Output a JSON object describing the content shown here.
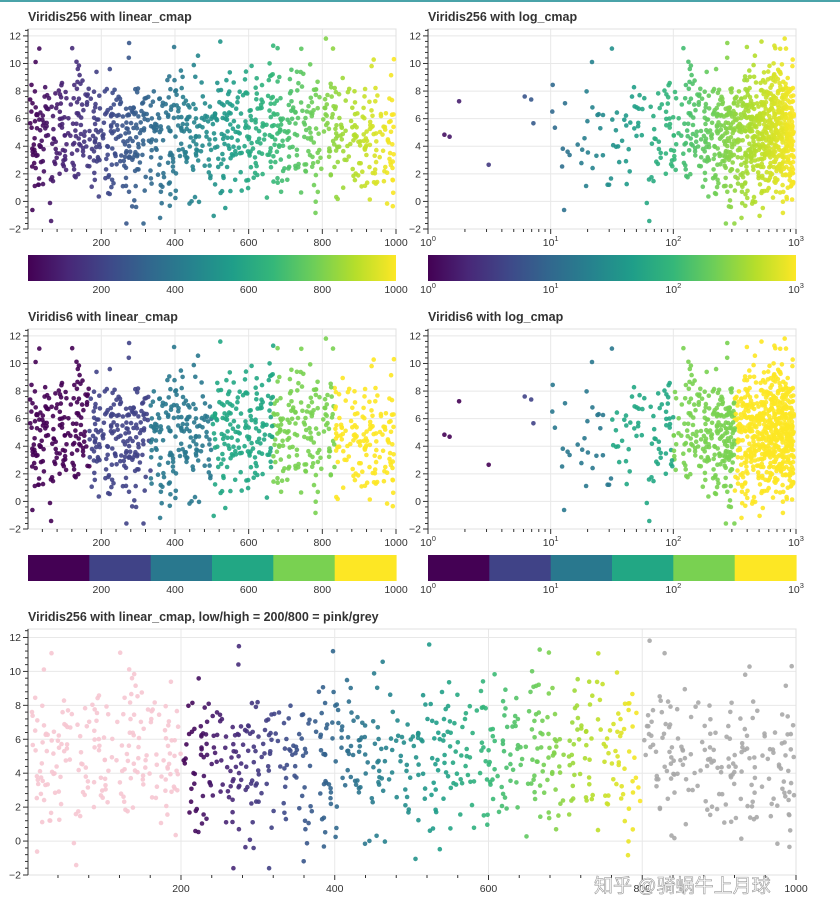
{
  "chart_data": [
    {
      "id": "p1",
      "type": "scatter",
      "title": "Viridis256 with linear_cmap",
      "palette": "Viridis256",
      "mapper": "linear_cmap",
      "xlim": [
        1,
        1000
      ],
      "ylim": [
        -2,
        12.5
      ],
      "x_scale": "linear",
      "xticks": [
        "200",
        "400",
        "600",
        "800",
        "1000"
      ],
      "yticks": [
        "12",
        "10",
        "8",
        "6",
        "4",
        "2",
        "0",
        "−2"
      ],
      "colorbar": {
        "type": "continuous",
        "ticks": [
          "200",
          "400",
          "600",
          "800",
          "1000"
        ]
      }
    },
    {
      "id": "p2",
      "type": "scatter",
      "title": "Viridis256 with log_cmap",
      "palette": "Viridis256",
      "mapper": "log_cmap",
      "xlim": [
        1,
        1000
      ],
      "ylim": [
        -2,
        12.5
      ],
      "x_scale": "log",
      "xticks": [
        "10",
        "10",
        "10",
        "10"
      ],
      "xtick_exponents": [
        "0",
        "1",
        "2",
        "3"
      ],
      "yticks": [
        "12",
        "10",
        "8",
        "6",
        "4",
        "2",
        "0",
        "−2"
      ],
      "colorbar": {
        "type": "continuous",
        "ticks": [
          "10",
          "10",
          "10",
          "10"
        ],
        "tick_exponents": [
          "0",
          "1",
          "2",
          "3"
        ]
      }
    },
    {
      "id": "p3",
      "type": "scatter",
      "title": "Viridis6 with linear_cmap",
      "palette": "Viridis6",
      "mapper": "linear_cmap",
      "xlim": [
        1,
        1000
      ],
      "ylim": [
        -2,
        12.5
      ],
      "x_scale": "linear",
      "xticks": [
        "200",
        "400",
        "600",
        "800",
        "1000"
      ],
      "yticks": [
        "12",
        "10",
        "8",
        "6",
        "4",
        "2",
        "0",
        "−2"
      ],
      "colorbar": {
        "type": "discrete",
        "ticks": [
          "200",
          "400",
          "600",
          "800",
          "1000"
        ]
      }
    },
    {
      "id": "p4",
      "type": "scatter",
      "title": "Viridis6 with log_cmap",
      "palette": "Viridis6",
      "mapper": "log_cmap",
      "xlim": [
        1,
        1000
      ],
      "ylim": [
        -2,
        12.5
      ],
      "x_scale": "log",
      "xticks": [
        "10",
        "10",
        "10",
        "10"
      ],
      "xtick_exponents": [
        "0",
        "1",
        "2",
        "3"
      ],
      "yticks": [
        "12",
        "10",
        "8",
        "6",
        "4",
        "2",
        "0",
        "−2"
      ],
      "colorbar": {
        "type": "discrete",
        "ticks": [
          "10",
          "10",
          "10",
          "10"
        ],
        "tick_exponents": [
          "0",
          "1",
          "2",
          "3"
        ]
      }
    },
    {
      "id": "p5",
      "type": "scatter",
      "title": "Viridis256 with linear_cmap, low/high = 200/800 = pink/grey",
      "palette": "Viridis256",
      "mapper": "linear_cmap",
      "low": 200,
      "high": 800,
      "low_color": "#f6c6d2",
      "high_color": "#a9a9a9",
      "xlim": [
        1,
        1000
      ],
      "ylim": [
        -2,
        12.5
      ],
      "x_scale": "linear",
      "xticks": [
        "200",
        "400",
        "600",
        "800",
        "1000"
      ],
      "yticks": [
        "12",
        "10",
        "8",
        "6",
        "4",
        "2",
        "0",
        "−2"
      ]
    }
  ],
  "colors": {
    "viridis": [
      "#440154",
      "#482878",
      "#3e4989",
      "#31688e",
      "#26828e",
      "#1f9e89",
      "#35b779",
      "#6ece58",
      "#b5de2b",
      "#fde725"
    ],
    "viridis6": [
      "#440154",
      "#404387",
      "#29788e",
      "#22a784",
      "#79d151",
      "#fde724"
    ],
    "grid": "#e8e8e8",
    "accent": "#4aa3a9"
  },
  "watermark": "知乎 @骑蜗牛上月球"
}
